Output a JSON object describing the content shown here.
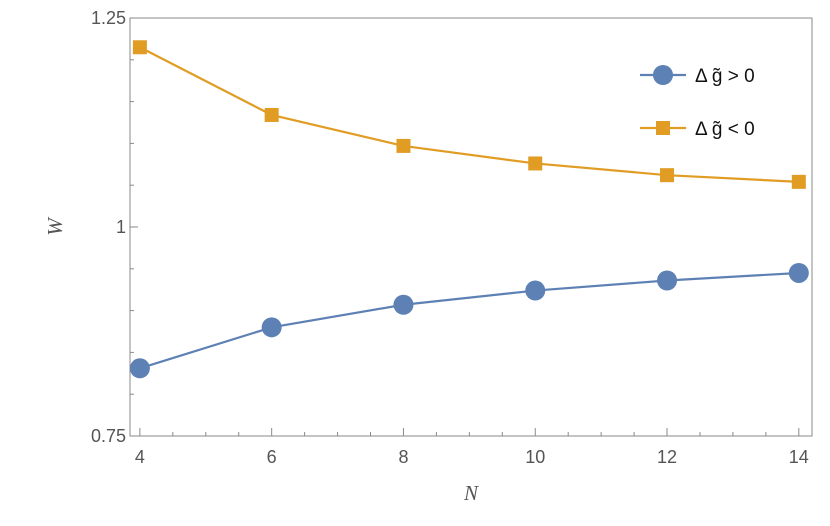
{
  "chart_data": {
    "type": "line",
    "xlabel": "N",
    "ylabel": "W",
    "x": [
      4,
      6,
      8,
      10,
      12,
      14
    ],
    "xticks": [
      "4",
      "6",
      "8",
      "10",
      "12",
      "14"
    ],
    "yticks": [
      {
        "value": 0.75,
        "label": "0.75"
      },
      {
        "value": 1.0,
        "label": "1"
      },
      {
        "value": 1.25,
        "label": "1.25"
      }
    ],
    "xlim": [
      3.85,
      14.2
    ],
    "ylim": [
      0.75,
      1.25
    ],
    "grid": false,
    "legend_position": "top-right",
    "series": [
      {
        "name": "Δ g̃ > 0",
        "marker": "circle",
        "color": "#5e81b5",
        "values": [
          0.831,
          0.88,
          0.907,
          0.924,
          0.936,
          0.945
        ]
      },
      {
        "name": "Δ g̃ < 0",
        "marker": "square",
        "color": "#e19c24",
        "values": [
          1.215,
          1.134,
          1.097,
          1.076,
          1.062,
          1.054
        ]
      }
    ]
  }
}
